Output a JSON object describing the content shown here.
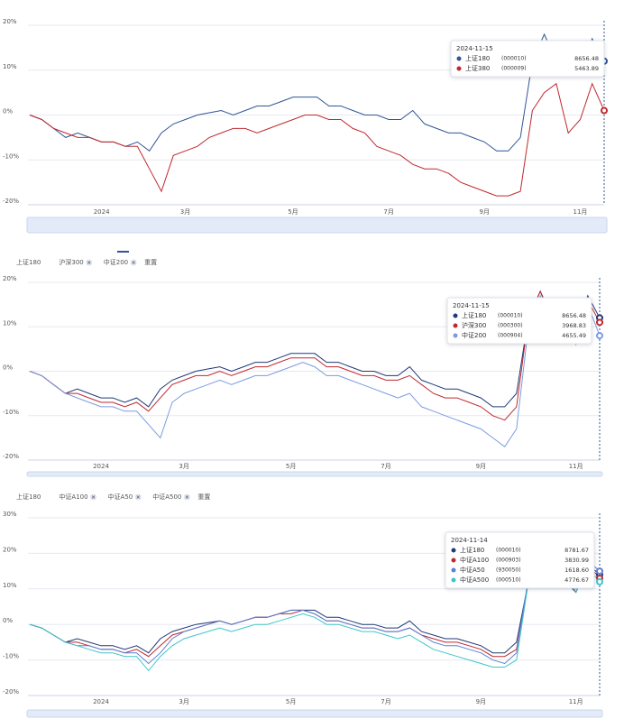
{
  "chart_data": [
    {
      "type": "line",
      "categories": [
        null,
        null,
        null,
        null,
        null,
        null,
        "2024",
        null,
        null,
        null,
        null,
        null,
        null,
        "3月",
        null,
        null,
        null,
        null,
        null,
        null,
        null,
        null,
        "5月",
        null,
        null,
        null,
        null,
        null,
        null,
        null,
        "7月",
        null,
        null,
        null,
        null,
        null,
        null,
        null,
        "9月",
        null,
        null,
        null,
        null,
        null,
        null,
        null,
        "11月",
        null,
        null
      ],
      "ylim": [
        -20,
        20
      ],
      "yticks": [
        {
          "value": -20,
          "label": "-20%"
        },
        {
          "value": -10,
          "label": "-10%"
        },
        {
          "value": 0,
          "label": "0%"
        },
        {
          "value": 10,
          "label": "10%"
        },
        {
          "value": 20,
          "label": "20%"
        }
      ],
      "grid": true,
      "tooltip": {
        "date": "2024-11-15",
        "values": [
          "8656.48",
          "5463.89"
        ]
      },
      "series": [
        {
          "name": "上证180",
          "code": "(000010)",
          "color": "#2f5597",
          "values": [
            0,
            -1,
            -3,
            -5,
            -4,
            -5,
            -6,
            -6,
            -7,
            -6,
            -8,
            -4,
            -2,
            -1,
            0,
            0.5,
            1,
            0,
            1,
            2,
            2,
            3,
            4,
            4,
            4,
            2,
            2,
            1,
            0,
            0,
            -1,
            -1,
            1,
            -2,
            -3,
            -4,
            -4,
            -5,
            -6,
            -8,
            -8,
            -5,
            12,
            18,
            12,
            14,
            9,
            17,
            12
          ]
        },
        {
          "name": "上证380",
          "code": "(000009)",
          "color": "#c0282d",
          "values": [
            0,
            -1,
            -3,
            -4,
            -5,
            -5,
            -6,
            -6,
            -7,
            -7,
            -12,
            -17,
            -9,
            -8,
            -7,
            -5,
            -4,
            -3,
            -3,
            -4,
            -3,
            -2,
            -1,
            0,
            0,
            -1,
            -1,
            -3,
            -4,
            -7,
            -8,
            -9,
            -11,
            -12,
            -12,
            -13,
            -15,
            -16,
            -17,
            -18,
            -18,
            -17,
            1,
            5,
            7,
            -4,
            -1,
            7,
            1
          ]
        }
      ]
    },
    {
      "type": "line",
      "categories": [
        null,
        null,
        null,
        null,
        null,
        null,
        "2024",
        null,
        null,
        null,
        null,
        null,
        null,
        "3月",
        null,
        null,
        null,
        null,
        null,
        null,
        null,
        null,
        "5月",
        null,
        null,
        null,
        null,
        null,
        null,
        null,
        "7月",
        null,
        null,
        null,
        null,
        null,
        null,
        null,
        "9月",
        null,
        null,
        null,
        null,
        null,
        null,
        null,
        "11月",
        null,
        null
      ],
      "ylim": [
        -20,
        20
      ],
      "yticks": [
        {
          "value": -20,
          "label": "-20%"
        },
        {
          "value": -10,
          "label": "-10%"
        },
        {
          "value": 0,
          "label": "0%"
        },
        {
          "value": 10,
          "label": "10%"
        },
        {
          "value": 20,
          "label": "20%"
        }
      ],
      "grid": true,
      "reset": "重置",
      "tooltip": {
        "date": "2024-11-15",
        "values": [
          "8656.48",
          "3968.83",
          "4655.49"
        ]
      },
      "series": [
        {
          "name": "上证180",
          "code": "(000010)",
          "color": "#1f3a78",
          "values": [
            0,
            -1,
            -3,
            -5,
            -4,
            -5,
            -6,
            -6,
            -7,
            -6,
            -8,
            -4,
            -2,
            -1,
            0,
            0.5,
            1,
            0,
            1,
            2,
            2,
            3,
            4,
            4,
            4,
            2,
            2,
            1,
            0,
            0,
            -1,
            -1,
            1,
            -2,
            -3,
            -4,
            -4,
            -5,
            -6,
            -8,
            -8,
            -5,
            12,
            18,
            12,
            14,
            9,
            17,
            12
          ]
        },
        {
          "name": "沪深300",
          "code": "(000300)",
          "color": "#c0282d",
          "values": [
            0,
            -1,
            -3,
            -5,
            -5,
            -6,
            -7,
            -7,
            -8,
            -7,
            -9,
            -6,
            -3,
            -2,
            -1,
            -1,
            0,
            -1,
            0,
            1,
            1,
            2,
            3,
            3,
            3,
            1,
            1,
            0,
            -1,
            -1,
            -2,
            -2,
            -1,
            -3,
            -5,
            -6,
            -6,
            -7,
            -8,
            -10,
            -11,
            -8,
            12,
            18,
            11,
            13,
            8,
            16,
            11
          ]
        },
        {
          "name": "中证200",
          "code": "(000904)",
          "color": "#7b9be0",
          "values": [
            0,
            -1,
            -3,
            -5,
            -6,
            -7,
            -8,
            -8,
            -9,
            -9,
            -12,
            -15,
            -7,
            -5,
            -4,
            -3,
            -2,
            -3,
            -2,
            -1,
            -1,
            0,
            1,
            2,
            1,
            -1,
            -1,
            -2,
            -3,
            -4,
            -5,
            -6,
            -5,
            -8,
            -9,
            -10,
            -11,
            -12,
            -13,
            -15,
            -17,
            -13,
            10,
            17,
            8,
            12,
            6,
            15,
            8
          ]
        }
      ]
    },
    {
      "type": "line",
      "categories": [
        null,
        null,
        null,
        null,
        null,
        null,
        "2024",
        null,
        null,
        null,
        null,
        null,
        null,
        "3月",
        null,
        null,
        null,
        null,
        null,
        null,
        null,
        null,
        "5月",
        null,
        null,
        null,
        null,
        null,
        null,
        null,
        "7月",
        null,
        null,
        null,
        null,
        null,
        null,
        null,
        "9月",
        null,
        null,
        null,
        null,
        null,
        null,
        null,
        "11月",
        null,
        null
      ],
      "ylim": [
        -20,
        30
      ],
      "yticks": [
        {
          "value": -20,
          "label": "-20%"
        },
        {
          "value": -10,
          "label": "-10%"
        },
        {
          "value": 0,
          "label": "0%"
        },
        {
          "value": 10,
          "label": "10%"
        },
        {
          "value": 20,
          "label": "20%"
        },
        {
          "value": 30,
          "label": "30%"
        }
      ],
      "grid": true,
      "reset": "重置",
      "tooltip": {
        "date": "2024-11-14",
        "values": [
          "8781.67",
          "3830.99",
          "1618.60",
          "4776.67"
        ]
      },
      "series": [
        {
          "name": "上证180",
          "code": "(000010)",
          "color": "#1f3a78",
          "values": [
            0,
            -1,
            -3,
            -5,
            -4,
            -5,
            -6,
            -6,
            -7,
            -6,
            -8,
            -4,
            -2,
            -1,
            0,
            0.5,
            1,
            0,
            1,
            2,
            2,
            3,
            4,
            4,
            4,
            2,
            2,
            1,
            0,
            0,
            -1,
            -1,
            1,
            -2,
            -3,
            -4,
            -4,
            -5,
            -6,
            -8,
            -8,
            -5,
            12,
            18,
            12,
            14,
            9,
            17,
            14
          ]
        },
        {
          "name": "中证A100",
          "code": "(000903)",
          "color": "#c0282d",
          "values": [
            0,
            -1,
            -3,
            -5,
            -5,
            -6,
            -7,
            -7,
            -8,
            -7,
            -9,
            -6,
            -3,
            -2,
            -1,
            0,
            1,
            0,
            1,
            2,
            2,
            3,
            3,
            4,
            3,
            1,
            1,
            0,
            -1,
            -1,
            -2,
            -2,
            -1,
            -3,
            -4,
            -5,
            -5,
            -6,
            -7,
            -9,
            -9,
            -7,
            12,
            19,
            12,
            13,
            9,
            17,
            13
          ]
        },
        {
          "name": "中证A50",
          "code": "(930050)",
          "color": "#5b7fd8",
          "values": [
            0,
            -1,
            -3,
            -5,
            -6,
            -6,
            -7,
            -7,
            -8,
            -8,
            -11,
            -8,
            -4,
            -2,
            -1,
            0,
            1,
            0,
            1,
            2,
            2,
            3,
            4,
            4,
            3,
            1,
            1,
            0,
            -1,
            -1,
            -2,
            -2,
            -1,
            -3,
            -5,
            -6,
            -6,
            -7,
            -8,
            -10,
            -11,
            -8,
            13,
            20,
            12,
            14,
            10,
            18,
            15
          ]
        },
        {
          "name": "中证A500",
          "code": "(000510)",
          "color": "#3cc6c9",
          "values": [
            0,
            -1,
            -3,
            -5,
            -6,
            -7,
            -8,
            -8,
            -9,
            -9,
            -13,
            -9,
            -6,
            -4,
            -3,
            -2,
            -1,
            -2,
            -1,
            0,
            0,
            1,
            2,
            3,
            2,
            0,
            0,
            -1,
            -2,
            -2,
            -3,
            -4,
            -3,
            -5,
            -7,
            -8,
            -9,
            -10,
            -11,
            -12,
            -12,
            -10,
            12,
            18,
            11,
            12,
            9,
            16,
            12
          ]
        }
      ]
    }
  ]
}
